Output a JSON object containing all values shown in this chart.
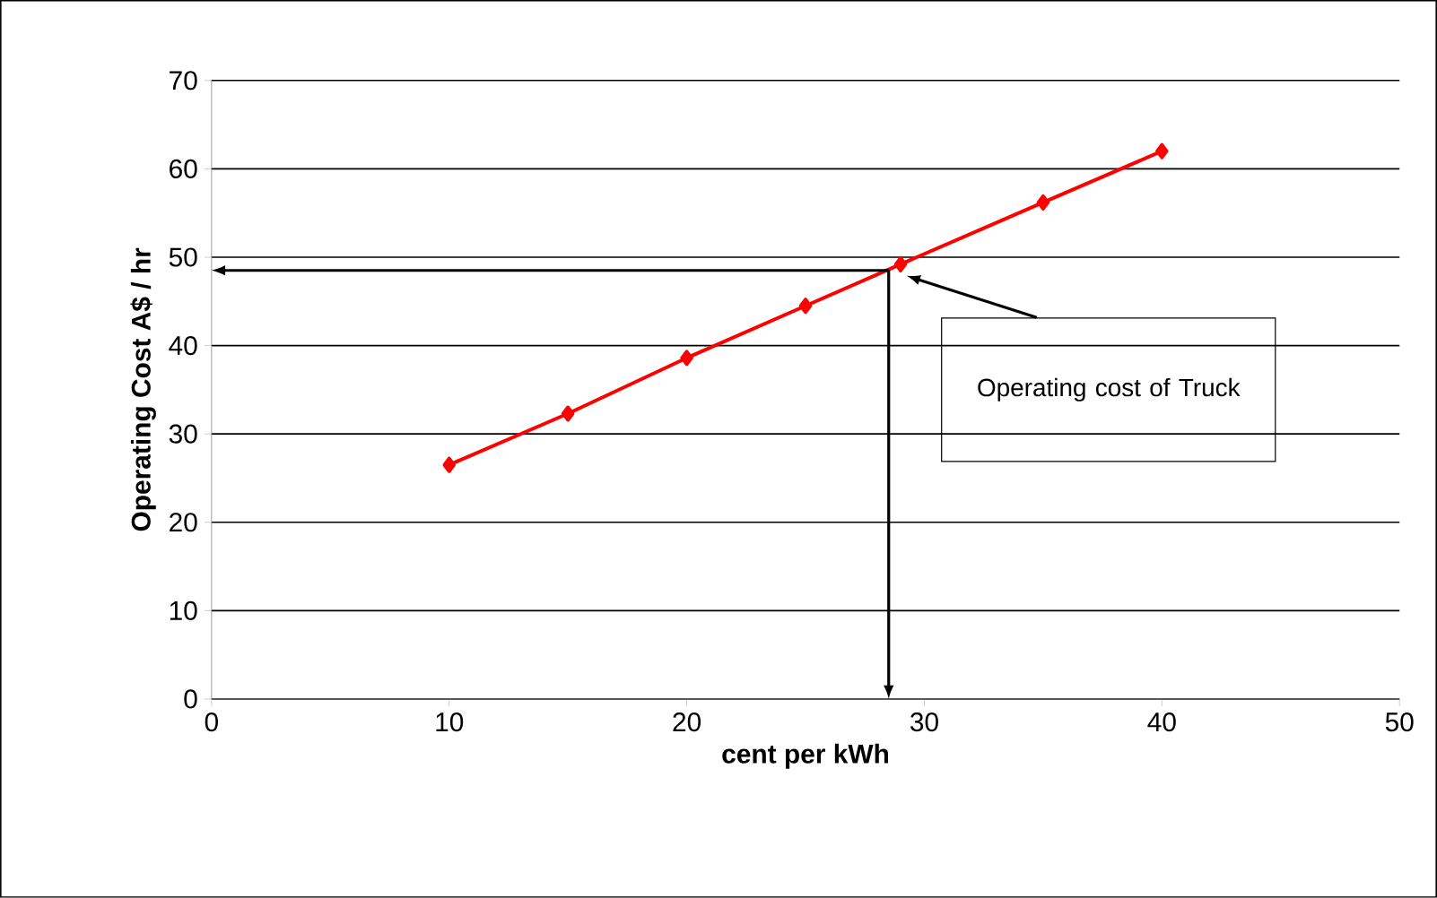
{
  "chart_data": {
    "type": "line",
    "xlabel": "cent per kWh",
    "ylabel": "Operating Cost A$ / hr",
    "x": [
      10,
      15,
      20,
      25,
      29,
      35,
      40
    ],
    "series": [
      {
        "color": "#ff0000",
        "values": [
          26.5,
          32.3,
          38.6,
          44.5,
          49.2,
          56.2,
          62
        ]
      }
    ],
    "xlim": [
      0,
      50
    ],
    "xticks": [
      0,
      10,
      20,
      30,
      40,
      50
    ],
    "ylim": [
      0,
      70
    ],
    "yticks": [
      0,
      10,
      20,
      30,
      40,
      50,
      60,
      70
    ],
    "grid": "y",
    "marker": "diamond",
    "line_style": "solid",
    "ref_lines": [
      {
        "axis": "x",
        "value": 28.5
      },
      {
        "axis": "y",
        "value": 48.5
      }
    ],
    "annotations": [
      "Operating cost of Truck"
    ]
  }
}
